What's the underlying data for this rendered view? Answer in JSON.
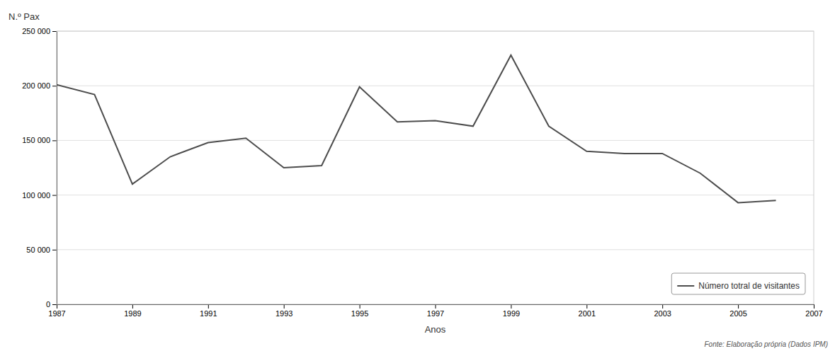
{
  "chart_data": {
    "type": "line",
    "xlabel": "Anos",
    "ylabel": "N.º Pax",
    "x": [
      1987,
      1988,
      1989,
      1990,
      1991,
      1992,
      1993,
      1994,
      1995,
      1996,
      1997,
      1998,
      1999,
      2000,
      2001,
      2002,
      2003,
      2004,
      2005,
      2006
    ],
    "series": [
      {
        "name": "Número totral de visitantes",
        "color": "#4d4d4d",
        "values": [
          201000,
          192000,
          110000,
          135000,
          148000,
          152000,
          125000,
          127000,
          199000,
          167000,
          168000,
          163000,
          228000,
          163000,
          140000,
          138000,
          138000,
          120000,
          93000,
          95000
        ]
      }
    ],
    "xlim": [
      1987,
      2007
    ],
    "ylim": [
      0,
      250000
    ],
    "xticks": [
      1987,
      1989,
      1991,
      1993,
      1995,
      1997,
      1999,
      2001,
      2003,
      2005,
      2007
    ],
    "yticks": [
      0,
      {
        "value": 50000,
        "label": "50 000"
      },
      {
        "value": 100000,
        "label": "100 000"
      },
      {
        "value": 150000,
        "label": "150 000"
      },
      {
        "value": 200000,
        "label": "200 000"
      },
      {
        "value": 250000,
        "label": "250 000"
      }
    ],
    "grid": true,
    "legend": "lower right",
    "annotations": [
      "Fonte: Elaboração própria (Dados IPM)"
    ]
  }
}
